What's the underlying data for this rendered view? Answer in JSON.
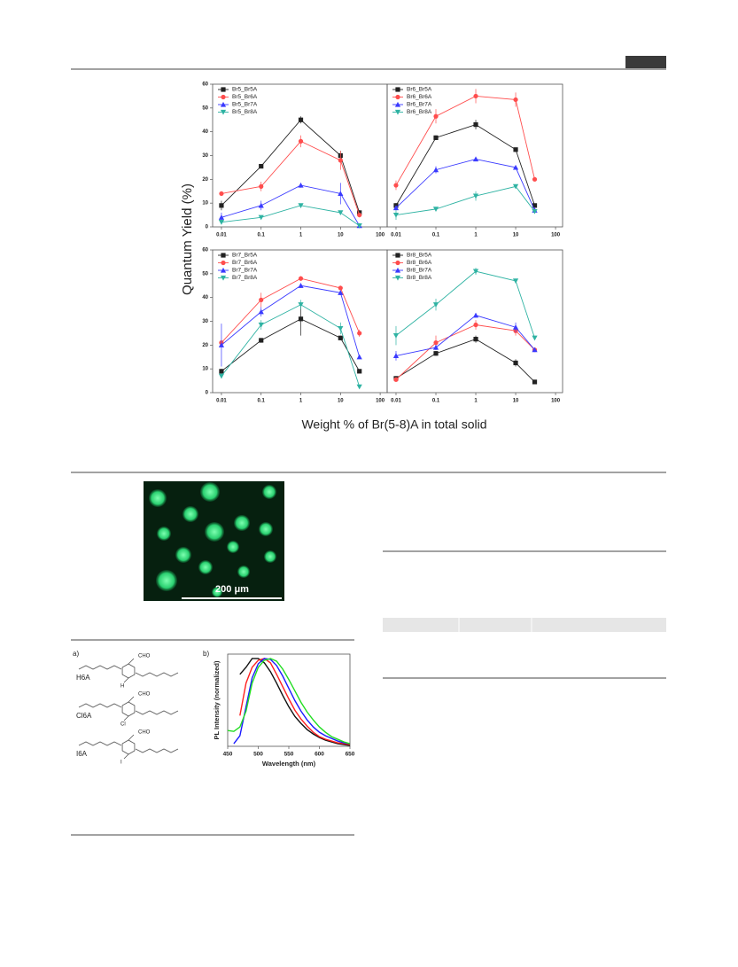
{
  "figure_1": {
    "y_label": "Quantum Yield (%)",
    "x_label": "Weight % of Br(5-8)A in total solid"
  },
  "figure_2": {
    "scale_bar": "200 μm"
  },
  "figure_3": {
    "panel_a": "a)",
    "panel_b": "b)",
    "compounds": [
      {
        "name": "H6A",
        "group": "CHO",
        "substituent": "H"
      },
      {
        "name": "Cl6A",
        "group": "CHO",
        "substituent": "Cl"
      },
      {
        "name": "I6A",
        "group": "CHO",
        "substituent": "I"
      }
    ]
  },
  "chart_data": [
    {
      "type": "line",
      "xscale": "log",
      "legend": "upper left",
      "x": [
        0.01,
        0.1,
        1,
        10,
        30
      ],
      "xlim": [
        0.006,
        150
      ],
      "xticks": [
        0.01,
        0.1,
        1,
        10,
        100
      ],
      "ylim": [
        0,
        60
      ],
      "yticks": [
        0,
        10,
        20,
        30,
        40,
        50,
        60
      ],
      "series": [
        {
          "name": "Br5_Br5A",
          "color": "#222222",
          "marker": "square",
          "values": [
            9,
            25.5,
            45,
            30,
            6
          ],
          "errors": [
            2,
            0.5,
            1.5,
            2,
            1
          ]
        },
        {
          "name": "Br5_Br6A",
          "color": "#ff4d4d",
          "marker": "circle",
          "values": [
            14,
            17,
            36,
            28,
            5
          ],
          "errors": [
            1,
            2,
            2.5,
            4,
            1
          ]
        },
        {
          "name": "Br5_Br7A",
          "color": "#3a3aff",
          "marker": "triangle-up",
          "values": [
            4,
            9,
            17.5,
            14,
            0.5
          ],
          "errors": [
            2,
            2,
            1,
            4.5,
            0.5
          ]
        },
        {
          "name": "Br5_Br8A",
          "color": "#2fb3a3",
          "marker": "triangle-down",
          "values": [
            2,
            4,
            9,
            6,
            0.5
          ],
          "errors": [
            0.5,
            0.5,
            0.5,
            0.5,
            0.5
          ]
        }
      ]
    },
    {
      "type": "line",
      "xscale": "log",
      "legend": "upper left",
      "x": [
        0.01,
        0.1,
        1,
        10,
        30
      ],
      "xlim": [
        0.006,
        150
      ],
      "xticks": [
        0.01,
        0.1,
        1,
        10,
        100
      ],
      "ylim": [
        0,
        60
      ],
      "series": [
        {
          "name": "Br6_Br5A",
          "color": "#222222",
          "marker": "square",
          "values": [
            9,
            37.5,
            43,
            32.5,
            9
          ],
          "errors": [
            1,
            1,
            2,
            0.5,
            0.5
          ]
        },
        {
          "name": "Br6_Br6A",
          "color": "#ff4d4d",
          "marker": "circle",
          "values": [
            17.5,
            46.5,
            55,
            53.5,
            20
          ],
          "errors": [
            2,
            3,
            3,
            3,
            0.5
          ]
        },
        {
          "name": "Br6_Br7A",
          "color": "#3a3aff",
          "marker": "triangle-up",
          "values": [
            8,
            24,
            28.5,
            25,
            7
          ],
          "errors": [
            1,
            1.5,
            0.5,
            0.5,
            0.5
          ]
        },
        {
          "name": "Br6_Br8A",
          "color": "#2fb3a3",
          "marker": "triangle-down",
          "values": [
            5,
            7.5,
            13,
            17,
            6.5
          ],
          "errors": [
            2,
            0.5,
            2,
            0.5,
            0.5
          ]
        }
      ]
    },
    {
      "type": "line",
      "xscale": "log",
      "legend": "upper left",
      "x": [
        0.01,
        0.1,
        1,
        10,
        30
      ],
      "xlim": [
        0.006,
        150
      ],
      "xticks": [
        0.01,
        0.1,
        1,
        10,
        100
      ],
      "ylim": [
        0,
        60
      ],
      "yticks": [
        0,
        10,
        20,
        30,
        40,
        50,
        60
      ],
      "series": [
        {
          "name": "Br7_Br5A",
          "color": "#222222",
          "marker": "square",
          "values": [
            9,
            22,
            31,
            23,
            9
          ],
          "errors": [
            1,
            1,
            7,
            1,
            0.5
          ]
        },
        {
          "name": "Br7_Br6A",
          "color": "#ff4d4d",
          "marker": "circle",
          "values": [
            21,
            39,
            48,
            44,
            25
          ],
          "errors": [
            1,
            3,
            1,
            1,
            1.5
          ]
        },
        {
          "name": "Br7_Br7A",
          "color": "#3a3aff",
          "marker": "triangle-up",
          "values": [
            20,
            34,
            45,
            42,
            15
          ],
          "errors": [
            9,
            2,
            1,
            1,
            0.5
          ]
        },
        {
          "name": "Br7_Br8A",
          "color": "#2fb3a3",
          "marker": "triangle-down",
          "values": [
            7,
            28.5,
            37,
            27,
            2.5
          ],
          "errors": [
            1,
            2,
            2,
            2.5,
            0.5
          ]
        }
      ]
    },
    {
      "type": "line",
      "xscale": "log",
      "legend": "upper left",
      "x": [
        0.01,
        0.1,
        1,
        10,
        30
      ],
      "xlim": [
        0.006,
        150
      ],
      "xticks": [
        0.01,
        0.1,
        1,
        10,
        100
      ],
      "ylim": [
        0,
        60
      ],
      "series": [
        {
          "name": "Br8_Br5A",
          "color": "#222222",
          "marker": "square",
          "values": [
            6,
            16.5,
            22.5,
            12.5,
            4.5
          ],
          "errors": [
            1,
            1,
            1.5,
            1.5,
            0.5
          ]
        },
        {
          "name": "Br8_Br6A",
          "color": "#ff4d4d",
          "marker": "circle",
          "values": [
            5.5,
            21,
            28.5,
            26,
            18
          ],
          "errors": [
            1,
            3,
            2,
            2,
            0.5
          ]
        },
        {
          "name": "Br8_Br7A",
          "color": "#3a3aff",
          "marker": "triangle-up",
          "values": [
            15.5,
            19,
            32.5,
            27.5,
            18
          ],
          "errors": [
            2,
            1,
            1,
            2,
            0.5
          ]
        },
        {
          "name": "Br8_Br8A",
          "color": "#2fb3a3",
          "marker": "triangle-down",
          "values": [
            24,
            37,
            51,
            47,
            23
          ],
          "errors": [
            4,
            2.5,
            1.5,
            0.5,
            0.5
          ]
        }
      ]
    },
    {
      "type": "line",
      "xscale": "linear",
      "xlabel": "Wavelength (nm)",
      "ylabel": "PL Intensity (normalized)",
      "x": [
        450,
        460,
        470,
        480,
        490,
        500,
        510,
        520,
        530,
        540,
        550,
        560,
        570,
        580,
        590,
        600,
        610,
        620,
        630,
        640,
        650
      ],
      "xlim": [
        450,
        650
      ],
      "xticks": [
        450,
        500,
        550,
        600,
        650
      ],
      "ylim": [
        0,
        1.05
      ],
      "series": [
        {
          "color": "#111111",
          "values": [
            null,
            null,
            0.82,
            0.9,
            1.0,
            1.0,
            0.95,
            0.85,
            0.72,
            0.58,
            0.45,
            0.34,
            0.26,
            0.19,
            0.14,
            0.1,
            0.07,
            0.05,
            0.03,
            0.02,
            0.01
          ]
        },
        {
          "color": "#ff2020",
          "values": [
            null,
            null,
            0.35,
            0.72,
            0.9,
            0.98,
            1.0,
            0.95,
            0.82,
            0.68,
            0.54,
            0.41,
            0.31,
            0.23,
            0.16,
            0.11,
            0.08,
            0.06,
            0.04,
            0.03,
            0.02
          ]
        },
        {
          "color": "#1a1aff",
          "values": [
            null,
            0.03,
            0.12,
            0.45,
            0.78,
            0.94,
            1.0,
            0.99,
            0.92,
            0.8,
            0.66,
            0.52,
            0.4,
            0.3,
            0.22,
            0.16,
            0.12,
            0.09,
            0.06,
            0.04,
            0.03
          ]
        },
        {
          "color": "#22dd22",
          "values": [
            0.18,
            0.17,
            0.22,
            0.4,
            0.72,
            0.9,
            0.98,
            1.0,
            0.97,
            0.88,
            0.76,
            0.63,
            0.5,
            0.39,
            0.3,
            0.22,
            0.16,
            0.11,
            0.08,
            0.05,
            0.03
          ]
        }
      ]
    }
  ]
}
